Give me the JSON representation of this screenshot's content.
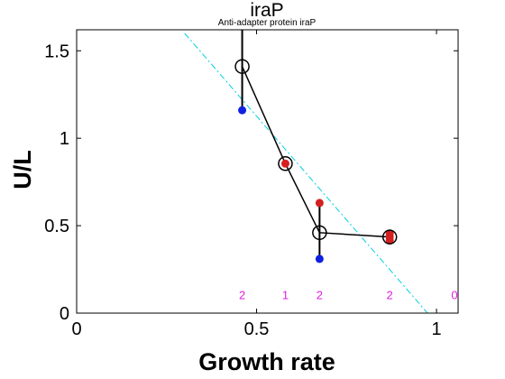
{
  "chart_data": {
    "type": "scatter",
    "title": "iraP",
    "subtitle": "Anti-adapter protein iraP",
    "xlabel": "Growth rate",
    "ylabel": "U/L",
    "xlim": [
      0,
      1.06
    ],
    "ylim": [
      0,
      1.62
    ],
    "xticks": [
      0,
      0.5,
      1
    ],
    "xtick_labels": [
      "0",
      "0.5",
      "1"
    ],
    "yticks": [
      0,
      0.5,
      1,
      1.5
    ],
    "ytick_labels": [
      "0",
      "0.5",
      "1",
      "1.5"
    ],
    "grid": false,
    "legend": "none",
    "mean_line": {
      "x": [
        0.46,
        0.58,
        0.675,
        0.87
      ],
      "y": [
        1.41,
        0.855,
        0.46,
        0.435
      ]
    },
    "error_bars": [
      {
        "x": 0.46,
        "low": 1.16,
        "high": 1.62
      },
      {
        "x": 0.58,
        "low": 0.84,
        "high": 0.87
      },
      {
        "x": 0.675,
        "low": 0.31,
        "high": 0.63
      },
      {
        "x": 0.87,
        "low": 0.41,
        "high": 0.46
      }
    ],
    "red_points": {
      "x": [
        0.58,
        0.675,
        0.87,
        0.87,
        0.87
      ],
      "y": [
        0.855,
        0.63,
        0.455,
        0.435,
        0.415
      ]
    },
    "blue_points": {
      "x": [
        0.46,
        0.675
      ],
      "y": [
        1.16,
        0.31
      ]
    },
    "fit_line": {
      "x": [
        0.3,
        0.975
      ],
      "y": [
        1.6,
        0
      ]
    },
    "counts": [
      {
        "x": 0.46,
        "label": "2"
      },
      {
        "x": 0.58,
        "label": "1"
      },
      {
        "x": 0.675,
        "label": "2"
      },
      {
        "x": 0.87,
        "label": "2"
      },
      {
        "x": 1.05,
        "label": "0"
      }
    ],
    "counts_y": 0.1,
    "colors": {
      "axes": "#000000",
      "mean": "#000000",
      "red": "#d42020",
      "blue": "#1020e0",
      "fit": "#00d0e0",
      "counts": "#e020e0"
    }
  }
}
